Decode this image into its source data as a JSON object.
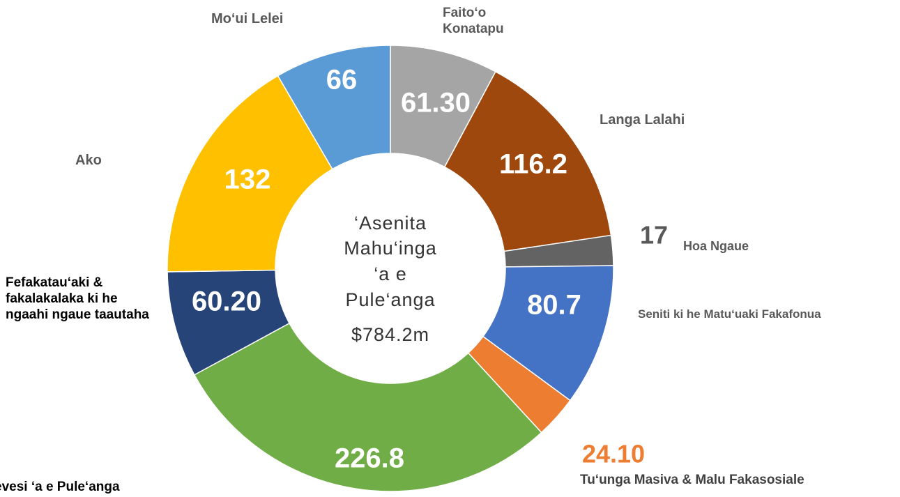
{
  "chart_data": {
    "type": "donut",
    "categories": [
      "Faito‘o Konatapu",
      "Langa Lalahi",
      "Hoa Ngaue",
      "Seniti ki he Matu‘uaki Fakafonua",
      "Tu‘unga Masiva & Malu Fakasosiale",
      "evesi ‘a e Pule‘anga",
      "Fefakatau‘aki & fakalakalaka ki he ngaahi ngaue taautaha",
      "Ako",
      "Mo‘ui Lelei"
    ],
    "values": [
      61.3,
      116.2,
      17,
      80.7,
      24.1,
      226.8,
      60.2,
      132,
      66
    ],
    "value_labels": [
      "61.30",
      "116.2",
      "17",
      "80.7",
      "24.10",
      "226.8",
      "60.20",
      "132",
      "66"
    ],
    "colors": [
      "#a5a5a5",
      "#9e480e",
      "#636363",
      "#4472c4",
      "#ed7d31",
      "#70ad47",
      "#264478",
      "#ffc000",
      "#5b9bd5"
    ],
    "center_text": [
      "‘Asenita",
      "Mahu‘inga",
      "‘a e",
      "Pule‘anga",
      "$784.2m"
    ]
  }
}
